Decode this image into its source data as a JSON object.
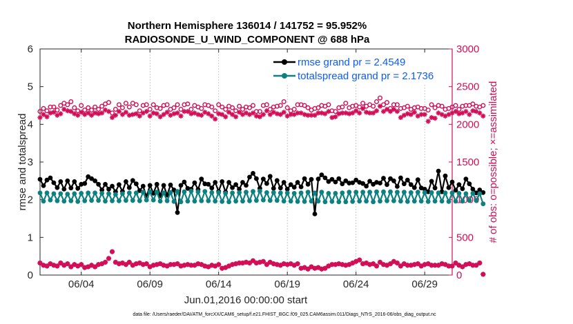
{
  "chart_data": {
    "type": "line",
    "title_line1": "Northern Hemisphere 136014 / 141752 = 95.952%",
    "title_line2": "RADIOSONDE_U_WIND_COMPONENT @ 688 hPa",
    "ylabel_left": "rmse and totalspread",
    "ylabel_right": "# of obs: o=possible; ×=assimilated",
    "xlabel": "Jun.01,2016 00:00:00 start",
    "footnote": "data file: /Users/raeder/DAI/ATM_forcXX/CAM6_setup/f.e21.FHIST_BGC.f09_025.CAM6assim.011/Diags_NTrS_2016-06/obs_diag_output.nc",
    "xlim_days": [
      1,
      31
    ],
    "xticks": [
      {
        "day": 4,
        "label": "06/04"
      },
      {
        "day": 9,
        "label": "06/09"
      },
      {
        "day": 14,
        "label": "06/14"
      },
      {
        "day": 19,
        "label": "06/19"
      },
      {
        "day": 24,
        "label": "06/24"
      },
      {
        "day": 29,
        "label": "06/29"
      }
    ],
    "ylim_left": [
      0,
      6
    ],
    "yticks_left": [
      "0",
      "1",
      "2",
      "3",
      "4",
      "5",
      "6"
    ],
    "ylim_right": [
      0,
      3000
    ],
    "yticks_right": [
      "0",
      "500",
      "1000",
      "1500",
      "2000",
      "2500",
      "3000"
    ],
    "step_days": 0.25,
    "series": [
      {
        "name": "rmse",
        "legend": "rmse grand pr = 2.4549",
        "axis": "left",
        "color": "#000000",
        "marker": "dot",
        "values": [
          2.54,
          2.37,
          2.52,
          2.58,
          2.45,
          2.32,
          2.48,
          2.28,
          2.5,
          2.31,
          2.48,
          2.3,
          2.41,
          2.43,
          2.61,
          2.56,
          2.5,
          2.41,
          2.26,
          2.41,
          2.28,
          2.36,
          2.21,
          2.4,
          2.22,
          2.48,
          2.32,
          2.51,
          2.42,
          2.24,
          2.36,
          2.08,
          2.38,
          2.17,
          2.41,
          2.11,
          2.38,
          2.12,
          2.39,
          2.26,
          1.66,
          2.38,
          2.47,
          2.3,
          2.28,
          2.45,
          2.27,
          2.55,
          2.42,
          2.41,
          2.31,
          2.46,
          2.22,
          2.48,
          2.2,
          2.46,
          2.32,
          2.4,
          2.28,
          2.46,
          2.38,
          2.6,
          2.7,
          2.56,
          2.3,
          2.55,
          2.43,
          2.62,
          2.3,
          2.51,
          2.31,
          2.46,
          2.28,
          2.4,
          2.33,
          2.46,
          2.34,
          2.56,
          2.41,
          2.54,
          1.62,
          2.55,
          2.66,
          2.58,
          2.48,
          2.54,
          2.47,
          2.56,
          2.42,
          2.5,
          2.44,
          2.45,
          2.52,
          2.46,
          2.43,
          2.36,
          2.49,
          2.41,
          2.46,
          2.44,
          2.57,
          2.4,
          2.56,
          2.5,
          2.35,
          2.58,
          2.42,
          2.52,
          2.4,
          2.32,
          2.53,
          2.31,
          2.28,
          2.21,
          2.49,
          2.31,
          2.76,
          2.21,
          2.63,
          2.32,
          2.47,
          2.25,
          2.4,
          2.29,
          2.55,
          2.42,
          2.28,
          2.18,
          2.26,
          2.19
        ],
        "fill_markers": true
      },
      {
        "name": "totalspread",
        "legend": "totalspread grand pr = 2.1736",
        "axis": "left",
        "color": "#0d8080",
        "marker": "dot",
        "values": [
          2.18,
          1.96,
          2.18,
          1.99,
          2.16,
          1.97,
          2.16,
          1.96,
          2.15,
          1.97,
          2.16,
          1.95,
          2.17,
          1.97,
          2.18,
          1.98,
          2.18,
          1.98,
          2.17,
          1.96,
          2.16,
          1.97,
          2.14,
          1.97,
          2.16,
          1.98,
          2.18,
          1.98,
          2.18,
          1.97,
          2.2,
          1.99,
          2.21,
          1.99,
          2.2,
          1.96,
          2.18,
          1.97,
          2.19,
          1.95,
          2.22,
          1.94,
          2.21,
          1.96,
          2.23,
          1.96,
          2.21,
          1.97,
          2.22,
          1.97,
          2.19,
          1.96,
          2.19,
          1.95,
          2.17,
          1.94,
          2.18,
          1.96,
          2.19,
          1.96,
          2.2,
          1.97,
          2.22,
          1.98,
          2.23,
          1.99,
          2.19,
          1.98,
          2.19,
          1.98,
          2.18,
          1.96,
          2.18,
          1.96,
          2.17,
          1.95,
          2.18,
          1.95,
          2.2,
          1.96,
          2.18,
          1.96,
          2.2,
          1.94,
          2.17,
          1.95,
          2.17,
          1.94,
          2.18,
          1.94,
          2.2,
          1.95,
          2.2,
          1.96,
          2.2,
          1.96,
          2.2,
          1.94,
          2.21,
          1.96,
          2.21,
          1.97,
          2.21,
          1.97,
          2.2,
          1.96,
          2.2,
          1.95,
          2.19,
          1.96,
          2.2,
          1.96,
          2.19,
          1.95,
          2.19,
          1.96,
          2.18,
          1.96,
          2.18,
          1.95,
          2.18,
          1.96,
          2.17,
          1.96,
          2.16,
          1.98,
          2.17,
          1.98,
          2.16,
          1.89
        ],
        "fill_markers": true
      },
      {
        "name": "obs possible",
        "axis": "right",
        "color": "#d10e57",
        "marker": "circle-open",
        "values": [
          2170,
          2210,
          2180,
          2230,
          2230,
          2190,
          2250,
          2280,
          2260,
          2300,
          2220,
          2180,
          2250,
          2190,
          2220,
          2190,
          2230,
          2200,
          2240,
          2270,
          2290,
          2150,
          2200,
          2260,
          2220,
          2280,
          2230,
          2280,
          2260,
          2180,
          2250,
          2260,
          2200,
          2260,
          2220,
          2210,
          2250,
          2260,
          2200,
          2220,
          2260,
          2200,
          2260,
          2270,
          2200,
          2250,
          2230,
          2210,
          2260,
          2250,
          2230,
          2180,
          2260,
          2230,
          2200,
          2240,
          2220,
          2180,
          2240,
          2200,
          2230,
          2220,
          2250,
          2170,
          2170,
          2250,
          2260,
          2200,
          2230,
          2240,
          2250,
          2300,
          2220,
          2180,
          2200,
          2260,
          2260,
          2250,
          2220,
          2190,
          2210,
          2220,
          2250,
          2240,
          2260,
          2180,
          2170,
          2220,
          2230,
          2280,
          2220,
          2240,
          2250,
          2230,
          2280,
          2240,
          2260,
          2240,
          2300,
          2350,
          2260,
          2290,
          2210,
          2260,
          2260,
          2210,
          2220,
          2240,
          2200,
          2220,
          2230,
          2210,
          2210,
          2190,
          2260,
          2220,
          2250,
          2240,
          2200,
          2210,
          2230,
          2250,
          2200,
          2240,
          2250,
          2250,
          2270,
          2240,
          2230,
          2250
        ],
        "fill_markers": false
      },
      {
        "name": "obs assimilated",
        "axis": "right",
        "color": "#d10e57",
        "marker": "asterisk",
        "values": [
          2090,
          2130,
          2100,
          2150,
          2160,
          2120,
          2140,
          2200,
          2180,
          2170,
          2140,
          2120,
          2160,
          2130,
          2150,
          2120,
          2150,
          2140,
          2150,
          2190,
          2170,
          2090,
          2120,
          2170,
          2130,
          2160,
          2120,
          2130,
          2140,
          2110,
          2150,
          2170,
          2110,
          2150,
          2140,
          2100,
          2130,
          2160,
          2120,
          2140,
          2150,
          2110,
          2170,
          2170,
          2140,
          2150,
          2130,
          2120,
          2160,
          2140,
          2110,
          2070,
          2140,
          2130,
          2100,
          2160,
          2130,
          2100,
          2160,
          2130,
          2150,
          2130,
          2150,
          2110,
          2100,
          2130,
          2180,
          2130,
          2160,
          2140,
          2130,
          2160,
          2110,
          2130,
          2130,
          2150,
          2150,
          2130,
          2120,
          2120,
          2120,
          2150,
          2150,
          2140,
          2170,
          2090,
          2100,
          2140,
          2150,
          2150,
          2140,
          2150,
          2180,
          2150,
          2210,
          2160,
          2150,
          2150,
          2180,
          2240,
          2170,
          2200,
          2170,
          2200,
          2170,
          2090,
          2120,
          2140,
          2130,
          2160,
          2110,
          2130,
          2130,
          2040,
          2090,
          2080,
          2150,
          2130,
          2110,
          2130,
          2150,
          2170,
          2140,
          2150,
          2170,
          2130,
          2180,
          2170,
          2150,
          2110
        ],
        "fill_markers": false
      },
      {
        "name": "obs possible (low)",
        "axis": "right",
        "color": "#d10e57",
        "marker": "circle-open",
        "values": [
          160,
          130,
          120,
          150,
          130,
          120,
          160,
          130,
          150,
          110,
          140,
          120,
          140,
          100,
          110,
          130,
          110,
          140,
          150,
          170,
          220,
          310,
          170,
          150,
          160,
          140,
          170,
          130,
          150,
          160,
          140,
          150,
          110,
          130,
          140,
          150,
          130,
          120,
          140,
          140,
          150,
          120,
          130,
          140,
          130,
          130,
          150,
          140,
          120,
          110,
          130,
          120,
          140,
          90,
          100,
          120,
          140,
          150,
          160,
          160,
          170,
          160,
          190,
          160,
          170,
          180,
          140,
          170,
          150,
          140,
          130,
          150,
          140,
          150,
          130,
          150,
          90,
          100,
          80,
          110,
          90,
          100,
          80,
          90,
          120,
          140,
          140,
          150,
          140,
          130,
          140,
          160,
          180,
          200,
          150,
          160,
          140,
          150,
          120,
          170,
          140,
          130,
          150,
          180,
          160,
          120,
          150,
          130,
          130,
          140,
          150,
          120,
          140,
          150,
          130,
          130,
          130,
          150,
          140,
          120,
          120,
          160,
          130,
          110,
          140,
          150,
          130,
          130,
          160,
          10
        ],
        "fill_markers": false
      },
      {
        "name": "obs assimilated (low)",
        "axis": "right",
        "color": "#d10e57",
        "marker": "asterisk",
        "values": [
          160,
          130,
          120,
          150,
          130,
          120,
          160,
          130,
          150,
          110,
          140,
          120,
          140,
          100,
          110,
          130,
          110,
          140,
          150,
          170,
          220,
          310,
          170,
          150,
          160,
          140,
          170,
          130,
          150,
          160,
          140,
          150,
          110,
          130,
          140,
          150,
          130,
          120,
          140,
          140,
          150,
          120,
          130,
          140,
          130,
          130,
          150,
          140,
          120,
          110,
          130,
          120,
          140,
          90,
          100,
          120,
          140,
          150,
          160,
          160,
          170,
          160,
          190,
          160,
          170,
          180,
          140,
          170,
          150,
          140,
          130,
          150,
          140,
          150,
          130,
          150,
          90,
          100,
          80,
          110,
          90,
          100,
          80,
          90,
          120,
          140,
          140,
          150,
          140,
          130,
          140,
          160,
          180,
          200,
          150,
          160,
          140,
          150,
          120,
          170,
          140,
          130,
          150,
          180,
          160,
          120,
          150,
          130,
          130,
          140,
          150,
          120,
          140,
          150,
          130,
          130,
          130,
          150,
          140,
          120,
          120,
          160,
          130,
          110,
          140,
          150,
          130,
          130,
          160,
          10
        ],
        "fill_markers": false
      }
    ]
  }
}
